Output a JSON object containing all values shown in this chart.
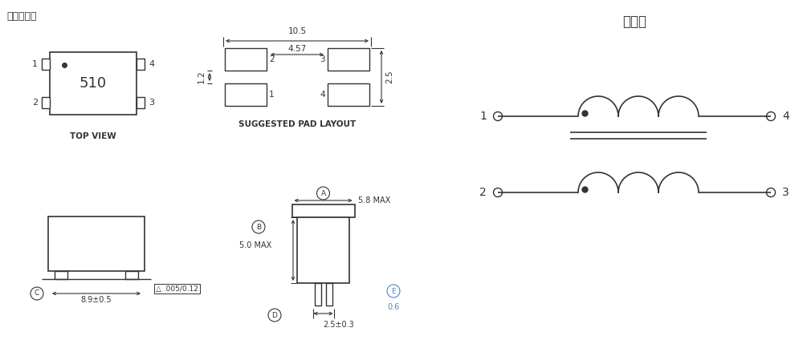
{
  "bg_color": "#ffffff",
  "lc": "#333333",
  "bc": "#4488cc",
  "title_phase": "相位图",
  "title_main": "尺寸图纸：",
  "top_view_label": "TOP VIEW",
  "pad_layout_label": "SUGGESTED PAD LAYOUT",
  "component_label": "510",
  "dim_10_5": "10.5",
  "dim_4_57": "4.57",
  "dim_1_2": "1.2",
  "dim_2_5": "2.5",
  "dim_8_9": "8.9±0.5",
  "dim_005_012": ".005/0.12",
  "dim_5_8_MAX": "5.8 MAX",
  "dim_5_0_MAX": "5.0 MAX",
  "dim_0_6": "0.6",
  "dim_2_5_03": "2.5±0.3"
}
